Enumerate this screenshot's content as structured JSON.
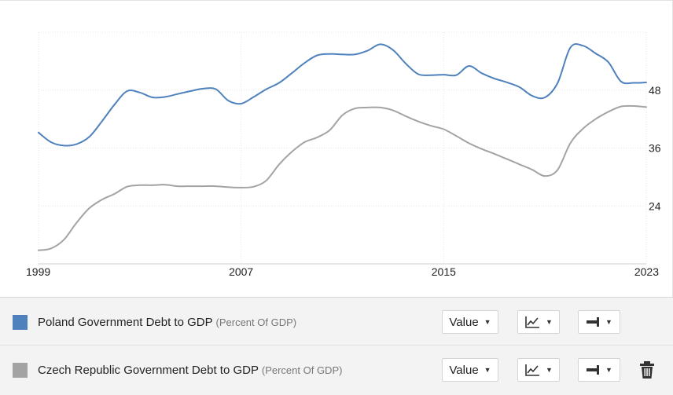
{
  "chart_data": {
    "type": "line",
    "x_ticks": [
      "1999",
      "2007",
      "2015",
      "2023"
    ],
    "y_ticks": [
      24,
      36,
      48
    ],
    "xlim": [
      1999,
      2023
    ],
    "ylim": [
      12,
      60
    ],
    "grid": true,
    "y_axis_side": "right",
    "series": [
      {
        "name": "Poland Government Debt to GDP",
        "unit": "(Percent Of GDP)",
        "color": "#4f81bd",
        "x": [
          1999,
          1999.5,
          2000,
          2000.5,
          2001,
          2001.5,
          2002,
          2002.5,
          2003,
          2003.5,
          2004,
          2004.5,
          2005,
          2005.5,
          2006,
          2006.5,
          2007,
          2007.5,
          2008,
          2008.5,
          2009,
          2009.5,
          2010,
          2010.5,
          2011,
          2011.5,
          2012,
          2012.5,
          2013,
          2013.5,
          2014,
          2014.5,
          2015,
          2015.5,
          2016,
          2016.5,
          2017,
          2017.5,
          2018,
          2018.5,
          2019,
          2019.5,
          2020,
          2020.5,
          2021,
          2021.5,
          2022,
          2022.5,
          2023
        ],
        "y": [
          39.2,
          37.2,
          36.5,
          36.8,
          38.3,
          41.5,
          45,
          47.8,
          47.5,
          46.5,
          46.6,
          47.2,
          47.8,
          48.3,
          48.2,
          45.8,
          45.2,
          46.6,
          48.2,
          49.5,
          51.5,
          53.6,
          55.2,
          55.5,
          55.4,
          55.4,
          56.2,
          57.5,
          56.3,
          53.5,
          51.3,
          51.1,
          51.2,
          51.1,
          53,
          51.5,
          50.4,
          49.6,
          48.6,
          46.8,
          46.5,
          49.5,
          56.8,
          57.2,
          55.6,
          53.8,
          49.8,
          49.5,
          49.6
        ]
      },
      {
        "name": "Czech Republic Government Debt to GDP",
        "unit": "(Percent Of GDP)",
        "color": "#a3a3a3",
        "x": [
          1999,
          1999.5,
          2000,
          2000.5,
          2001,
          2001.5,
          2002,
          2002.5,
          2003,
          2003.5,
          2004,
          2004.5,
          2005,
          2005.5,
          2006,
          2006.5,
          2007,
          2007.5,
          2008,
          2008.5,
          2009,
          2009.5,
          2010,
          2010.5,
          2011,
          2011.5,
          2012,
          2012.5,
          2013,
          2013.5,
          2014,
          2014.5,
          2015,
          2015.5,
          2016,
          2016.5,
          2017,
          2017.5,
          2018,
          2018.5,
          2019,
          2019.5,
          2020,
          2020.5,
          2021,
          2021.5,
          2022,
          2022.5,
          2023
        ],
        "y": [
          14.8,
          15.2,
          17,
          20.5,
          23.5,
          25.3,
          26.5,
          28,
          28.3,
          28.3,
          28.4,
          28.1,
          28.1,
          28.1,
          28.1,
          27.9,
          27.8,
          28,
          29.3,
          32.6,
          35.2,
          37.2,
          38.2,
          39.7,
          42.8,
          44.2,
          44.4,
          44.4,
          43.8,
          42.6,
          41.5,
          40.6,
          39.9,
          38.5,
          37,
          35.8,
          34.8,
          33.7,
          32.6,
          31.5,
          30.2,
          31.5,
          37,
          40,
          42,
          43.5,
          44.6,
          44.7,
          44.5
        ]
      }
    ]
  },
  "legend": {
    "items": [
      {
        "label": "Poland Government Debt to GDP",
        "unit": "(Percent Of GDP)",
        "color": "#4f81bd",
        "value_control": "Value",
        "chart_type_icon": "line-chart-icon",
        "style_icon": "line-style-icon"
      },
      {
        "label": "Czech Republic Government Debt to GDP",
        "unit": "(Percent Of GDP)",
        "color": "#a3a3a3",
        "value_control": "Value",
        "chart_type_icon": "line-chart-icon",
        "style_icon": "line-style-icon",
        "delete_icon": "trash-icon"
      }
    ]
  }
}
